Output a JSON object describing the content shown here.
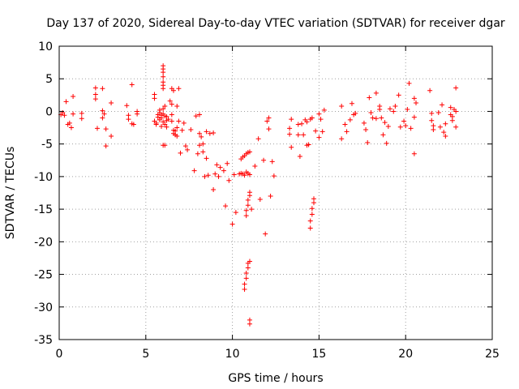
{
  "chart_data": {
    "type": "scatter",
    "title": "Day 137 of 2020, Sidereal Day-to-day VTEC variation (SDTVAR) for receiver dgar",
    "xlabel": "GPS time / hours",
    "ylabel": "SDTVAR / TECUs",
    "xlim": [
      0,
      25
    ],
    "ylim": [
      -35,
      10
    ],
    "xticks": [
      0,
      5,
      10,
      15,
      20,
      25
    ],
    "yticks": [
      -35,
      -30,
      -25,
      -20,
      -15,
      -10,
      -5,
      0,
      5,
      10
    ],
    "grid": true,
    "marker": "plus",
    "series": [
      {
        "name": "SDTVAR",
        "color": "#ff0000",
        "points": [
          [
            0.1,
            -0.5
          ],
          [
            0.2,
            -0.2
          ],
          [
            0.3,
            -0.6
          ],
          [
            0.4,
            1.5
          ],
          [
            0.5,
            -2.0
          ],
          [
            0.6,
            -1.8
          ],
          [
            0.7,
            -2.5
          ],
          [
            0.8,
            2.3
          ],
          [
            0.8,
            -0.4
          ],
          [
            1.3,
            -0.3
          ],
          [
            1.3,
            -1.1
          ],
          [
            2.1,
            3.6
          ],
          [
            2.1,
            2.6
          ],
          [
            2.1,
            1.9
          ],
          [
            2.2,
            -2.6
          ],
          [
            2.5,
            3.5
          ],
          [
            2.5,
            0.1
          ],
          [
            2.5,
            -1.0
          ],
          [
            2.6,
            -0.4
          ],
          [
            2.7,
            -2.7
          ],
          [
            2.7,
            -5.3
          ],
          [
            3.0,
            1.3
          ],
          [
            3.0,
            -3.8
          ],
          [
            3.9,
            0.9
          ],
          [
            4.0,
            -0.6
          ],
          [
            4.0,
            -1.2
          ],
          [
            4.2,
            4.1
          ],
          [
            4.2,
            -1.9
          ],
          [
            4.3,
            -2.0
          ],
          [
            4.5,
            0.0
          ],
          [
            4.5,
            -0.4
          ],
          [
            5.5,
            2.6
          ],
          [
            5.5,
            2.0
          ],
          [
            5.5,
            -1.5
          ],
          [
            5.6,
            -1.8
          ],
          [
            5.6,
            -2.0
          ],
          [
            5.7,
            -0.5
          ],
          [
            5.7,
            -0.9
          ],
          [
            5.8,
            -0.2
          ],
          [
            5.8,
            0.2
          ],
          [
            5.8,
            -1.3
          ],
          [
            5.9,
            -2.3
          ],
          [
            5.9,
            -0.6
          ],
          [
            5.9,
            -1.0
          ],
          [
            6.0,
            7.0
          ],
          [
            6.0,
            6.5
          ],
          [
            6.0,
            6.0
          ],
          [
            6.0,
            5.3
          ],
          [
            6.0,
            4.5
          ],
          [
            6.0,
            4.0
          ],
          [
            6.0,
            3.5
          ],
          [
            6.0,
            0.4
          ],
          [
            6.0,
            -0.4
          ],
          [
            6.0,
            -1.6
          ],
          [
            6.0,
            -5.2
          ],
          [
            6.1,
            0.8
          ],
          [
            6.1,
            -0.7
          ],
          [
            6.1,
            -2.0
          ],
          [
            6.1,
            -5.2
          ],
          [
            6.2,
            -0.8
          ],
          [
            6.2,
            -1.4
          ],
          [
            6.2,
            -2.4
          ],
          [
            6.3,
            -1.2
          ],
          [
            6.4,
            1.6
          ],
          [
            6.5,
            3.5
          ],
          [
            6.5,
            1.1
          ],
          [
            6.5,
            -0.5
          ],
          [
            6.5,
            -1.5
          ],
          [
            6.6,
            -2.9
          ],
          [
            6.6,
            3.2
          ],
          [
            6.6,
            -3.4
          ],
          [
            6.7,
            -3.6
          ],
          [
            6.7,
            -3.0
          ],
          [
            6.8,
            -2.5
          ],
          [
            6.8,
            0.8
          ],
          [
            6.8,
            -3.8
          ],
          [
            6.9,
            3.5
          ],
          [
            6.9,
            -1.5
          ],
          [
            7.0,
            -6.4
          ],
          [
            7.1,
            -2.9
          ],
          [
            7.2,
            -1.8
          ],
          [
            7.3,
            -5.3
          ],
          [
            7.4,
            -5.9
          ],
          [
            7.6,
            -2.8
          ],
          [
            7.8,
            -9.1
          ],
          [
            7.9,
            -0.7
          ],
          [
            8.0,
            -6.5
          ],
          [
            8.1,
            -0.5
          ],
          [
            8.1,
            -3.4
          ],
          [
            8.1,
            -5.2
          ],
          [
            8.2,
            -3.9
          ],
          [
            8.3,
            -5.0
          ],
          [
            8.3,
            -6.2
          ],
          [
            8.4,
            -10.0
          ],
          [
            8.5,
            -3.1
          ],
          [
            8.5,
            -7.2
          ],
          [
            8.6,
            -9.8
          ],
          [
            8.7,
            -3.4
          ],
          [
            8.9,
            -3.3
          ],
          [
            8.9,
            -12.0
          ],
          [
            9.0,
            -9.6
          ],
          [
            9.1,
            -8.2
          ],
          [
            9.2,
            -10.0
          ],
          [
            9.3,
            -8.6
          ],
          [
            9.5,
            -9.1
          ],
          [
            9.6,
            -14.5
          ],
          [
            9.7,
            -8.0
          ],
          [
            9.8,
            -10.6
          ],
          [
            10.0,
            -17.3
          ],
          [
            10.1,
            -9.7
          ],
          [
            10.2,
            -15.5
          ],
          [
            10.4,
            -9.6
          ],
          [
            10.5,
            -9.5
          ],
          [
            10.5,
            -7.3
          ],
          [
            10.6,
            -7.0
          ],
          [
            10.7,
            -6.8
          ],
          [
            10.8,
            -6.5
          ],
          [
            10.9,
            -6.3
          ],
          [
            11.0,
            -6.2
          ],
          [
            10.6,
            -9.6
          ],
          [
            10.7,
            -9.8
          ],
          [
            10.8,
            -9.3
          ],
          [
            10.9,
            -9.5
          ],
          [
            11.0,
            -9.7
          ],
          [
            10.8,
            -16.0
          ],
          [
            10.8,
            -15.2
          ],
          [
            10.9,
            -14.4
          ],
          [
            10.9,
            -13.6
          ],
          [
            11.0,
            -12.9
          ],
          [
            11.0,
            -12.4
          ],
          [
            10.7,
            -27.3
          ],
          [
            10.7,
            -26.5
          ],
          [
            10.8,
            -25.6
          ],
          [
            10.8,
            -24.8
          ],
          [
            10.9,
            -24.0
          ],
          [
            10.9,
            -23.3
          ],
          [
            11.0,
            -23.0
          ],
          [
            11.1,
            -15.0
          ],
          [
            11.0,
            -32.0
          ],
          [
            11.0,
            -32.6
          ],
          [
            11.3,
            -8.4
          ],
          [
            11.5,
            -4.2
          ],
          [
            11.6,
            -13.5
          ],
          [
            11.8,
            -7.5
          ],
          [
            11.9,
            -18.8
          ],
          [
            12.0,
            -1.5
          ],
          [
            12.1,
            -1.0
          ],
          [
            12.1,
            -2.7
          ],
          [
            12.2,
            -13.0
          ],
          [
            12.3,
            -7.7
          ],
          [
            12.4,
            -9.9
          ],
          [
            13.3,
            -2.6
          ],
          [
            13.3,
            -3.5
          ],
          [
            13.4,
            -5.5
          ],
          [
            13.4,
            -1.2
          ],
          [
            13.8,
            -2.0
          ],
          [
            13.8,
            -3.6
          ],
          [
            13.9,
            -6.9
          ],
          [
            14.0,
            -1.9
          ],
          [
            14.1,
            -3.6
          ],
          [
            14.2,
            -1.3
          ],
          [
            14.3,
            -5.2
          ],
          [
            14.3,
            -1.6
          ],
          [
            14.4,
            -5.1
          ],
          [
            14.5,
            -1.2
          ],
          [
            14.6,
            -1.0
          ],
          [
            14.5,
            -17.9
          ],
          [
            14.5,
            -16.8
          ],
          [
            14.6,
            -15.8
          ],
          [
            14.6,
            -14.9
          ],
          [
            14.7,
            -14.0
          ],
          [
            14.7,
            -13.4
          ],
          [
            14.8,
            -3.0
          ],
          [
            15.0,
            -4.0
          ],
          [
            15.0,
            -0.4
          ],
          [
            15.1,
            -1.2
          ],
          [
            15.2,
            -3.1
          ],
          [
            15.3,
            0.2
          ],
          [
            16.3,
            0.8
          ],
          [
            16.3,
            -4.2
          ],
          [
            16.5,
            -2.0
          ],
          [
            16.6,
            -3.1
          ],
          [
            16.8,
            -1.3
          ],
          [
            16.9,
            1.2
          ],
          [
            17.0,
            -0.5
          ],
          [
            17.1,
            -0.3
          ],
          [
            17.6,
            -1.8
          ],
          [
            17.7,
            -2.8
          ],
          [
            17.8,
            -4.8
          ],
          [
            17.9,
            2.1
          ],
          [
            18.0,
            -0.2
          ],
          [
            18.1,
            -1.0
          ],
          [
            18.3,
            2.8
          ],
          [
            18.3,
            -1.1
          ],
          [
            18.5,
            0.8
          ],
          [
            18.5,
            0.3
          ],
          [
            18.6,
            -1.0
          ],
          [
            18.7,
            -3.6
          ],
          [
            18.8,
            -1.7
          ],
          [
            18.9,
            -4.9
          ],
          [
            19.0,
            -2.3
          ],
          [
            19.1,
            0.4
          ],
          [
            19.3,
            0.0
          ],
          [
            19.4,
            0.8
          ],
          [
            19.6,
            2.5
          ],
          [
            19.7,
            -2.4
          ],
          [
            19.9,
            -1.5
          ],
          [
            20.0,
            -2.2
          ],
          [
            20.1,
            0.3
          ],
          [
            20.2,
            4.3
          ],
          [
            20.3,
            -2.6
          ],
          [
            20.5,
            -0.9
          ],
          [
            20.5,
            2.0
          ],
          [
            20.5,
            -6.5
          ],
          [
            20.6,
            1.3
          ],
          [
            21.4,
            3.2
          ],
          [
            21.5,
            -0.3
          ],
          [
            21.5,
            -1.4
          ],
          [
            21.6,
            -2.2
          ],
          [
            21.6,
            -2.8
          ],
          [
            21.9,
            -0.2
          ],
          [
            22.0,
            -2.4
          ],
          [
            22.1,
            1.0
          ],
          [
            22.2,
            -3.2
          ],
          [
            22.3,
            -3.8
          ],
          [
            22.3,
            -1.9
          ],
          [
            22.6,
            0.6
          ],
          [
            22.6,
            -0.5
          ],
          [
            22.7,
            -1.4
          ],
          [
            22.7,
            -0.8
          ],
          [
            22.8,
            0.3
          ],
          [
            22.9,
            3.6
          ],
          [
            22.9,
            -2.4
          ],
          [
            22.9,
            0.0
          ]
        ]
      }
    ]
  }
}
